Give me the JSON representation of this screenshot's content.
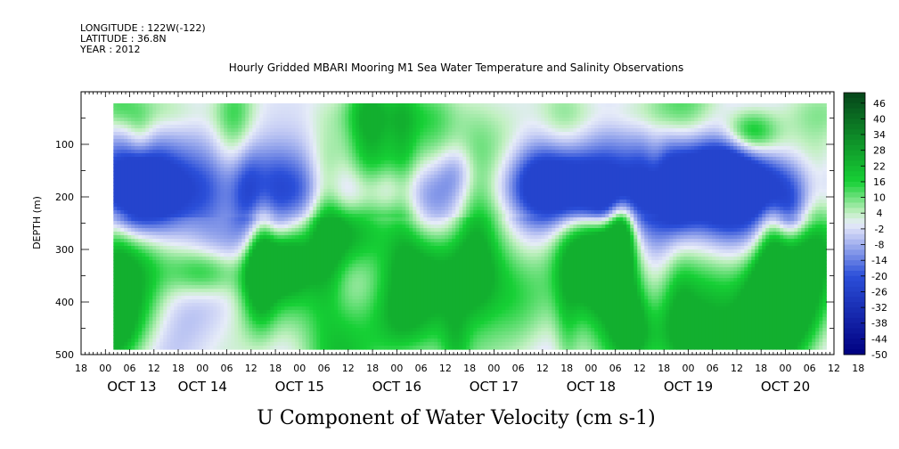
{
  "header": {
    "longitude": "LONGITUDE : 122W(-122)",
    "latitude": "LATITUDE : 36.8N",
    "year": "YEAR : 2012"
  },
  "chart_data": {
    "type": "heatmap",
    "title": "Hourly Gridded MBARI Mooring M1 Sea Water Temperature and Salinity Observations",
    "xlabel": "U Component of Water Velocity (cm s-1)",
    "ylabel": "DEPTH (m)",
    "x_unit": "hours",
    "x_range_hours": [
      -6,
      180
    ],
    "y_range": [
      500,
      0
    ],
    "y_inverted": true,
    "data_depth_range": [
      22,
      486
    ],
    "data_x_range_hours": [
      2,
      178
    ],
    "y_ticks": [
      100,
      200,
      300,
      400,
      500
    ],
    "hour_tick_labels": [
      "18",
      "00",
      "06",
      "12",
      "18",
      "00",
      "06",
      "12",
      "18",
      "00",
      "06",
      "12",
      "18",
      "00",
      "06",
      "12",
      "18",
      "00",
      "06",
      "12",
      "18",
      "00",
      "06",
      "12",
      "18",
      "00",
      "06",
      "12",
      "18",
      "00",
      "06",
      "12",
      "18"
    ],
    "day_labels": [
      "OCT 13",
      "OCT 14",
      "OCT 15",
      "OCT 16",
      "OCT 17",
      "OCT 18",
      "OCT 19",
      "OCT 20"
    ],
    "colorbar": {
      "min": -50,
      "max": 50,
      "tick_labels": [
        "46",
        "40",
        "34",
        "28",
        "22",
        "16",
        "10",
        "4",
        "-2",
        "-8",
        "-14",
        "-20",
        "-26",
        "-32",
        "-38",
        "-44",
        "-50"
      ],
      "neg_dark": "#000080",
      "neg_mid": "#2b4fd9",
      "neg_light": "#c8cff5",
      "pos_light": "#c2f0c2",
      "pos_mid": "#16d035",
      "pos_dark": "#05451a"
    },
    "field_note": "U velocity ranges roughly -20 to +20 cm/s; blue bands near 150-200 m, green patches near surface and below 250 m"
  }
}
